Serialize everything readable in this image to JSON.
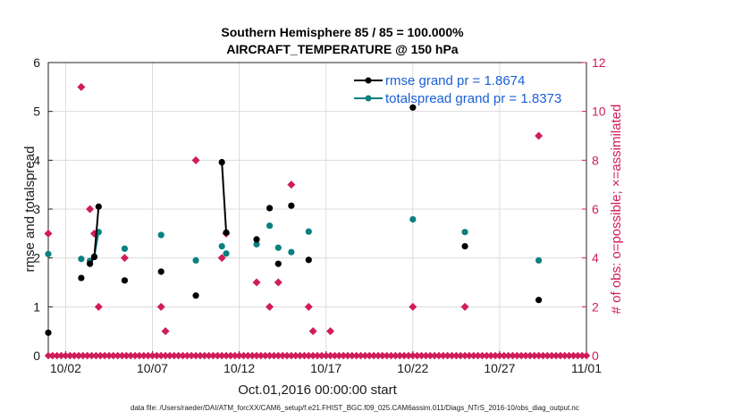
{
  "chart_data": {
    "type": "scatter",
    "title": "Southern Hemisphere 85 / 85 = 100.000%",
    "subtitle": "AIRCRAFT_TEMPERATURE @ 150 hPa",
    "xlabel": "Oct.01,2016 00:00:00 start",
    "ylabel": "rmse and totalspread",
    "y2label": "# of obs: o=possible; ×=assimilated",
    "xlim": [
      1.0,
      32.0
    ],
    "ylim": [
      0,
      6
    ],
    "y2lim": [
      0,
      12
    ],
    "xticks": [
      {
        "x": 2,
        "label": "10/02"
      },
      {
        "x": 7,
        "label": "10/07"
      },
      {
        "x": 12,
        "label": "10/12"
      },
      {
        "x": 17,
        "label": "10/17"
      },
      {
        "x": 22,
        "label": "10/22"
      },
      {
        "x": 27,
        "label": "10/27"
      },
      {
        "x": 32,
        "label": "11/01"
      }
    ],
    "yticks": [
      0,
      1,
      2,
      3,
      4,
      5,
      6
    ],
    "y2ticks": [
      0,
      2,
      4,
      6,
      8,
      10,
      12
    ],
    "grid": true,
    "legend_position": "top-right",
    "legend": [
      {
        "label": "rmse grand pr = 1.8674",
        "color": "#000000"
      },
      {
        "label": "totalspread grand pr = 1.8373",
        "color": "#0a8080"
      }
    ],
    "colors": {
      "rmse": "#000000",
      "spread": "#0a8080",
      "obs": "#d01c5b",
      "grid": "#dcdcdc"
    },
    "series": [
      {
        "name": "rmse",
        "points": [
          [
            1.0,
            0.47
          ],
          [
            2.9,
            1.59
          ],
          [
            3.4,
            1.88
          ],
          [
            3.65,
            2.02
          ],
          [
            3.9,
            3.05
          ],
          [
            5.4,
            1.54
          ],
          [
            7.5,
            1.72
          ],
          [
            9.5,
            1.23
          ],
          [
            11.0,
            3.96
          ],
          [
            11.25,
            2.52
          ],
          [
            13.0,
            2.38
          ],
          [
            13.75,
            3.02
          ],
          [
            14.25,
            1.88
          ],
          [
            15.0,
            3.07
          ],
          [
            16.0,
            1.96
          ],
          [
            22.0,
            5.08
          ],
          [
            25.0,
            2.24
          ],
          [
            29.25,
            1.14
          ]
        ],
        "segments": [
          [
            [
              3.4,
              1.88
            ],
            [
              3.65,
              2.02
            ],
            [
              3.9,
              3.05
            ]
          ],
          [
            [
              11.0,
              3.96
            ],
            [
              11.25,
              2.52
            ]
          ]
        ]
      },
      {
        "name": "totalspread",
        "points": [
          [
            1.0,
            2.08
          ],
          [
            2.9,
            1.98
          ],
          [
            3.4,
            1.94
          ],
          [
            3.65,
            2.03
          ],
          [
            3.9,
            2.53
          ],
          [
            5.4,
            2.19
          ],
          [
            7.5,
            2.47
          ],
          [
            9.5,
            1.95
          ],
          [
            11.0,
            2.24
          ],
          [
            11.25,
            2.09
          ],
          [
            13.0,
            2.28
          ],
          [
            13.75,
            2.66
          ],
          [
            14.25,
            2.21
          ],
          [
            15.0,
            2.12
          ],
          [
            16.0,
            2.54
          ],
          [
            22.0,
            2.79
          ],
          [
            25.0,
            2.53
          ],
          [
            29.25,
            1.95
          ]
        ],
        "segments": [
          [
            [
              3.4,
              1.94
            ],
            [
              3.65,
              2.03
            ],
            [
              3.9,
              2.53
            ]
          ]
        ]
      }
    ],
    "obs_possible": [
      [
        1.0,
        5
      ],
      [
        2.9,
        11
      ],
      [
        3.4,
        6
      ],
      [
        3.65,
        5
      ],
      [
        3.9,
        2
      ],
      [
        5.4,
        4
      ],
      [
        7.5,
        2
      ],
      [
        7.75,
        1
      ],
      [
        9.5,
        8
      ],
      [
        11.0,
        4
      ],
      [
        11.25,
        5
      ],
      [
        13.0,
        3
      ],
      [
        13.75,
        2
      ],
      [
        14.25,
        3
      ],
      [
        15.0,
        7
      ],
      [
        16.0,
        2
      ],
      [
        16.25,
        1
      ],
      [
        17.25,
        1
      ],
      [
        22.0,
        2
      ],
      [
        25.0,
        2
      ],
      [
        29.25,
        9
      ]
    ],
    "obs_zero_x": [
      1.0,
      1.25,
      1.5,
      1.75,
      2.0,
      2.25,
      2.5,
      2.75,
      3.0,
      3.25,
      3.5,
      3.75,
      4.0,
      4.25,
      4.5,
      4.75,
      5.0,
      5.25,
      5.5,
      5.75,
      6.0,
      6.25,
      6.5,
      6.75,
      7.0,
      7.25,
      7.5,
      7.75,
      8.0,
      8.25,
      8.5,
      8.75,
      9.0,
      9.25,
      9.5,
      9.75,
      10.0,
      10.25,
      10.5,
      10.75,
      11.0,
      11.25,
      11.5,
      11.75,
      12.0,
      12.25,
      12.5,
      12.75,
      13.0,
      13.25,
      13.5,
      13.75,
      14.0,
      14.25,
      14.5,
      14.75,
      15.0,
      15.25,
      15.5,
      15.75,
      16.0,
      16.25,
      16.5,
      16.75,
      17.0,
      17.25,
      17.5,
      17.75,
      18.0,
      18.25,
      18.5,
      18.75,
      19.0,
      19.25,
      19.5,
      19.75,
      20.0,
      20.25,
      20.5,
      20.75,
      21.0,
      21.25,
      21.5,
      21.75,
      22.0,
      22.25,
      22.5,
      22.75,
      23.0,
      23.25,
      23.5,
      23.75,
      24.0,
      24.25,
      24.5,
      24.75,
      25.0,
      25.25,
      25.5,
      25.75,
      26.0,
      26.25,
      26.5,
      26.75,
      27.0,
      27.25,
      27.5,
      27.75,
      28.0,
      28.25,
      28.5,
      28.75,
      29.0,
      29.25,
      29.5,
      29.75,
      30.0,
      30.25,
      30.5,
      30.75,
      31.0,
      31.25,
      31.5,
      31.75,
      32.0
    ]
  },
  "footer": "data file: /Users/raeder/DAI/ATM_forcXX/CAM6_setup/f.e21.FHIST_BGC.f09_025.CAM6assim.011/Diags_NTrS_2016-10/obs_diag_output.nc"
}
